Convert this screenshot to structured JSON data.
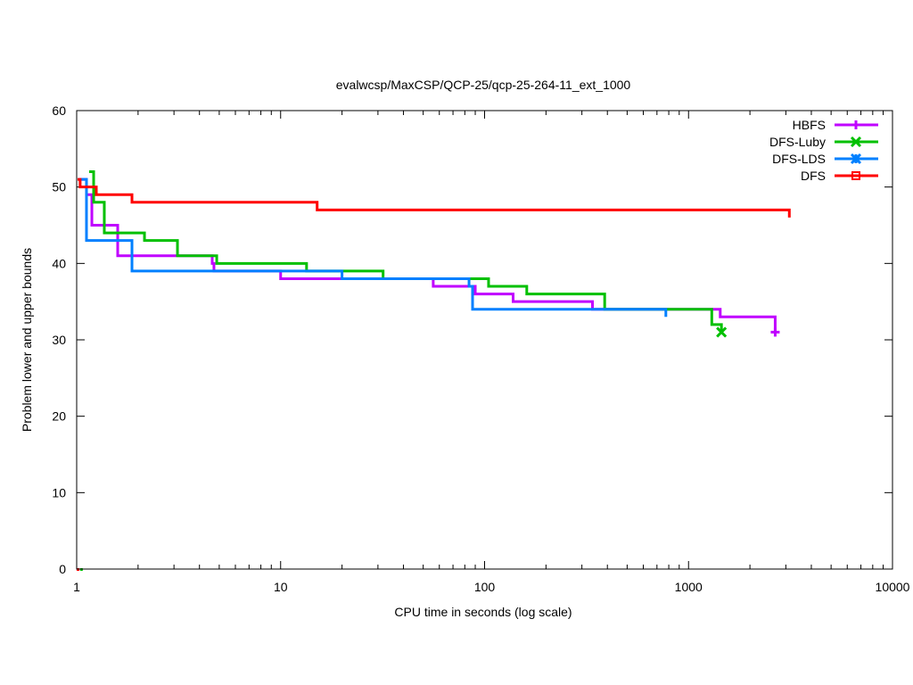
{
  "chart_data": {
    "type": "line",
    "title": "evalwcsp/MaxCSP/QCP-25/qcp-25-264-11_ext_1000",
    "xlabel": "CPU time in seconds (log scale)",
    "ylabel": "Problem lower and upper bounds",
    "xscale": "log",
    "xlim": [
      1,
      10000
    ],
    "ylim": [
      0,
      60
    ],
    "xticks": [
      1,
      10,
      100,
      1000,
      10000
    ],
    "xtick_labels": [
      "1",
      "10",
      "100",
      "1000",
      "10000"
    ],
    "yticks": [
      0,
      10,
      20,
      30,
      40,
      50,
      60
    ],
    "ytick_labels": [
      "0",
      "10",
      "20",
      "30",
      "40",
      "50",
      "60"
    ],
    "grid": false,
    "legend_position": "top-right",
    "style": "steps",
    "series": [
      {
        "name": "HBFS",
        "color": "#c000ff",
        "marker": "plus",
        "upper": [
          [
            1.02,
            51
          ],
          [
            1.117,
            49
          ],
          [
            1.187,
            45
          ],
          [
            1.589,
            41
          ],
          [
            4.62,
            40
          ],
          [
            4.71,
            39
          ],
          [
            10,
            38
          ],
          [
            56,
            37
          ],
          [
            90,
            36
          ],
          [
            138,
            35
          ],
          [
            338,
            34
          ],
          [
            1430,
            33
          ],
          [
            2660,
            31
          ]
        ],
        "lower": [
          [
            1.01,
            0
          ]
        ]
      },
      {
        "name": "DFS-Luby",
        "color": "#00c000",
        "marker": "cross",
        "upper": [
          [
            1.151,
            52
          ],
          [
            1.211,
            48
          ],
          [
            1.366,
            44
          ],
          [
            2.15,
            43
          ],
          [
            3.12,
            41
          ],
          [
            4.86,
            40
          ],
          [
            13.4,
            39
          ],
          [
            31.8,
            38
          ],
          [
            104.6,
            37
          ],
          [
            161,
            36
          ],
          [
            388,
            34
          ],
          [
            1300,
            32
          ],
          [
            1450,
            31
          ]
        ],
        "lower": [
          [
            1.05,
            0
          ]
        ]
      },
      {
        "name": "DFS-LDS",
        "color": "#0080ff",
        "marker": "star",
        "upper": [
          [
            1.04,
            51
          ],
          [
            1.117,
            43
          ],
          [
            1.867,
            39
          ],
          [
            20,
            38
          ],
          [
            83.9,
            37
          ],
          [
            87.3,
            34
          ],
          [
            774,
            33
          ]
        ],
        "lower": []
      },
      {
        "name": "DFS",
        "color": "#ff0000",
        "marker": "square",
        "upper": [
          [
            1.01,
            51
          ],
          [
            1.04,
            50
          ],
          [
            1.248,
            49
          ],
          [
            1.867,
            48
          ],
          [
            15.1,
            47
          ],
          [
            3120,
            46
          ]
        ],
        "lower": [
          [
            1.01,
            0
          ]
        ]
      }
    ]
  }
}
